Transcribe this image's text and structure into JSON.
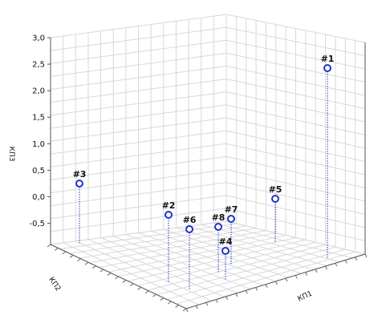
{
  "chart_data": {
    "type": "scatter3d",
    "title": "",
    "axes": {
      "z": {
        "label": "КП3",
        "ticks": [
          "3,0",
          "2,5",
          "2,0",
          "1,5",
          "1,0",
          "0,5",
          "0,0",
          "-0,5"
        ]
      },
      "x": {
        "label": "КП1"
      },
      "y": {
        "label": "КП2"
      }
    },
    "points": [
      {
        "label": "#1",
        "z": 2.25
      },
      {
        "label": "#2",
        "z": -0.3
      },
      {
        "label": "#3",
        "z": 0.2
      },
      {
        "label": "#4",
        "z": -0.8
      },
      {
        "label": "#5",
        "z": -0.1
      },
      {
        "label": "#6",
        "z": -0.5
      },
      {
        "label": "#7",
        "z": -0.4
      },
      {
        "label": "#8",
        "z": -0.5
      }
    ],
    "grid": true,
    "colors": {
      "marker": "#1f34c9",
      "grid": "#d8d8d8"
    }
  }
}
